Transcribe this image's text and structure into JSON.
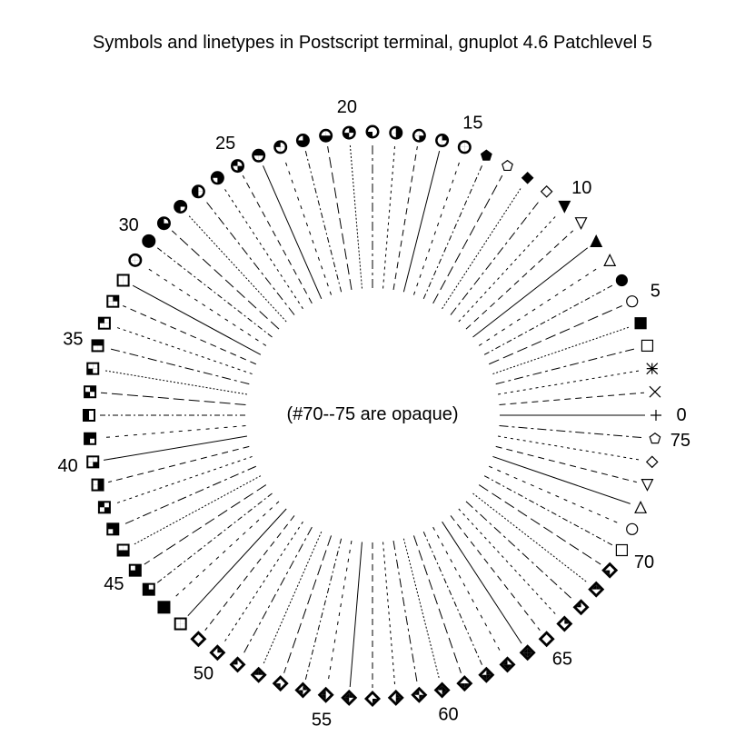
{
  "title": "Symbols and linetypes in Postscript terminal, gnuplot 4.6 Patchlevel 5",
  "center_note": "(#70--75 are opaque)",
  "index_labels": [
    "0",
    "5",
    "10",
    "15",
    "20",
    "25",
    "30",
    "35",
    "40",
    "45",
    "50",
    "55",
    "60",
    "65",
    "70",
    "75"
  ],
  "symbols": {
    "count": 76,
    "shapes": [
      "plus",
      "cross",
      "asterisk",
      "open-square",
      "filled-square",
      "open-circle",
      "filled-circle",
      "open-triangle-up",
      "filled-triangle-up",
      "open-triangle-down",
      "filled-triangle-down",
      "open-diamond",
      "filled-diamond",
      "open-pentagon",
      "filled-pentagon",
      "partly-filled-circle",
      "partly-filled-square",
      "partly-filled-diamond"
    ]
  },
  "colors": {
    "ink": "#000000",
    "background": "#ffffff"
  }
}
